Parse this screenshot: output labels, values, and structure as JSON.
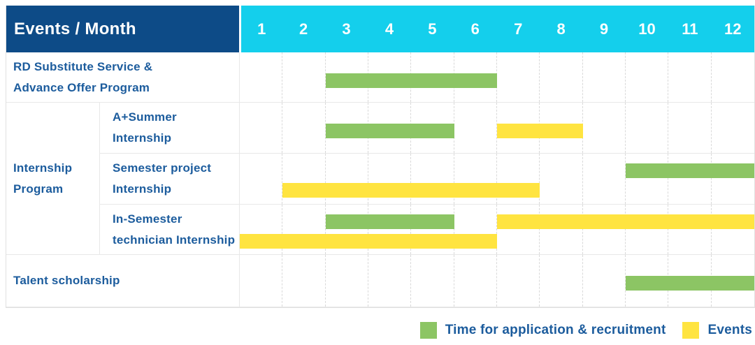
{
  "header": {
    "corner_label": "Events / Month",
    "months": [
      "1",
      "2",
      "3",
      "4",
      "5",
      "6",
      "7",
      "8",
      "9",
      "10",
      "11",
      "12"
    ]
  },
  "colors": {
    "corner_header_bg": "#0d4b87",
    "month_header_bg": "#14cfec",
    "header_text": "#ffffff",
    "row_label_text": "#1c5c9d",
    "recruitment_green": "#8cc564",
    "events_yellow": "#ffe440"
  },
  "chart_data": {
    "type": "gantt",
    "title": "Events / Month",
    "x_axis": {
      "label": "Month",
      "range": [
        1,
        12
      ],
      "ticks": [
        "1",
        "2",
        "3",
        "4",
        "5",
        "6",
        "7",
        "8",
        "9",
        "10",
        "11",
        "12"
      ]
    },
    "legend_position": "bottom-right",
    "legend": [
      {
        "key": "recruitment",
        "label": "Time for application & recruitment",
        "color": "#8cc564"
      },
      {
        "key": "events",
        "label": "Events",
        "color": "#ffe440"
      }
    ],
    "rows": [
      {
        "id": "rd-substitute-advance-offer",
        "group": "",
        "label": "RD Substitute Service & Advance Offer Program",
        "label_lines": [
          "RD Substitute Service &",
          "Advance Offer Program"
        ],
        "lines": 1,
        "bars": [
          {
            "series": "recruitment",
            "start_month": 3,
            "end_month": 6,
            "line": 1
          }
        ]
      },
      {
        "id": "a-plus-summer-internship",
        "group": "Internship Program",
        "group_lines": [
          "Internship",
          "Program"
        ],
        "label": "A+Summer Internship",
        "label_lines": [
          "A+Summer",
          "Internship"
        ],
        "lines": 1,
        "bars": [
          {
            "series": "recruitment",
            "start_month": 3,
            "end_month": 5,
            "line": 1
          },
          {
            "series": "events",
            "start_month": 7,
            "end_month": 8,
            "line": 1
          }
        ]
      },
      {
        "id": "semester-project-internship",
        "group": "Internship Program",
        "label": "Semester project Internship",
        "label_lines": [
          "Semester project",
          "Internship"
        ],
        "lines": 2,
        "bars": [
          {
            "series": "recruitment",
            "start_month": 10,
            "end_month": 12,
            "line": 1
          },
          {
            "series": "events",
            "start_month": 2,
            "end_month": 7,
            "line": 2
          }
        ]
      },
      {
        "id": "in-semester-technician-internship",
        "group": "Internship Program",
        "label": "In-Semester technician Internship",
        "label_lines": [
          "In-Semester",
          "technician Internship"
        ],
        "lines": 2,
        "bars": [
          {
            "series": "recruitment",
            "start_month": 3,
            "end_month": 5,
            "line": 1
          },
          {
            "series": "events",
            "start_month": 7,
            "end_month": 12,
            "line": 1
          },
          {
            "series": "events",
            "start_month": 1,
            "end_month": 6,
            "line": 2
          }
        ]
      },
      {
        "id": "talent-scholarship",
        "group": "",
        "label": "Talent scholarship",
        "label_lines": [
          "Talent scholarship"
        ],
        "lines": 1,
        "bars": [
          {
            "series": "recruitment",
            "start_month": 10,
            "end_month": 12,
            "line": 1
          }
        ]
      }
    ]
  }
}
